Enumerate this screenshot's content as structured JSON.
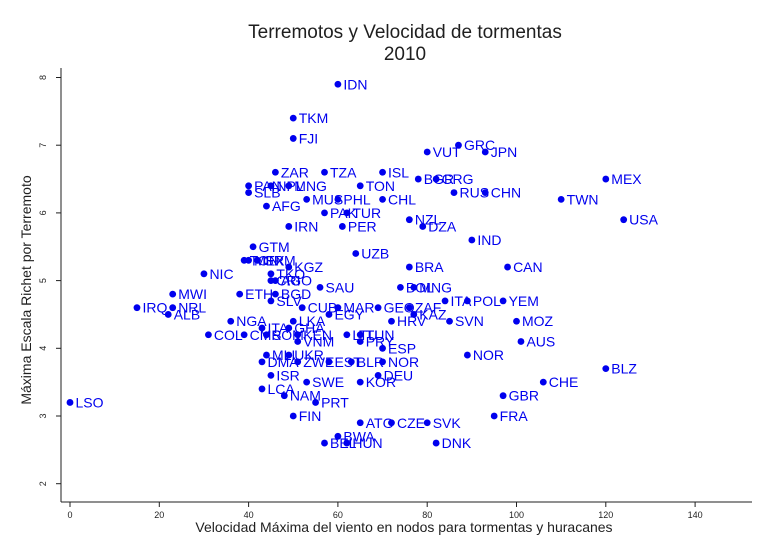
{
  "chart_data": {
    "type": "scatter",
    "title": "Terremotos y Velocidad de tormentas",
    "subtitle": "2010",
    "xlabel": "Velocidad Máxima del viento en nodos para tormentas y huracanes",
    "ylabel": "Máxima Escala Richet por Terremoto",
    "xlim": [
      0,
      152
    ],
    "ylim": [
      1.9,
      8.3
    ],
    "xticks": [
      "0",
      "20",
      "40",
      "60",
      "80",
      "100",
      "120",
      "140"
    ],
    "xtick_values": [
      0,
      20,
      40,
      60,
      80,
      100,
      120,
      140
    ],
    "yticks": [
      "2",
      "3",
      "4",
      "5",
      "6",
      "7",
      "8"
    ],
    "ytick_values": [
      2,
      3,
      4,
      5,
      6,
      7,
      8
    ],
    "grid": false,
    "marker_color": "#0000ee",
    "points": [
      {
        "label": "IDN",
        "x": 60,
        "y": 7.9
      },
      {
        "label": "TKM",
        "x": 50,
        "y": 7.4
      },
      {
        "label": "FJI",
        "x": 50,
        "y": 7.1
      },
      {
        "label": "GRC",
        "x": 87,
        "y": 7.0
      },
      {
        "label": "VUT",
        "x": 80,
        "y": 6.9
      },
      {
        "label": "JPN",
        "x": 93,
        "y": 6.9
      },
      {
        "label": "ZAR",
        "x": 46,
        "y": 6.6
      },
      {
        "label": "TZA",
        "x": 57,
        "y": 6.6
      },
      {
        "label": "ISL",
        "x": 70,
        "y": 6.6
      },
      {
        "label": "MEX",
        "x": 120,
        "y": 6.5
      },
      {
        "label": "PAN",
        "x": 40,
        "y": 6.4
      },
      {
        "label": "NPL",
        "x": 45,
        "y": 6.4
      },
      {
        "label": "MNG",
        "x": 49,
        "y": 6.4
      },
      {
        "label": "TON",
        "x": 65,
        "y": 6.4
      },
      {
        "label": "BGR",
        "x": 78,
        "y": 6.5
      },
      {
        "label": "GRG",
        "x": 82,
        "y": 6.5
      },
      {
        "label": "RUS",
        "x": 86,
        "y": 6.3
      },
      {
        "label": "CHN",
        "x": 93,
        "y": 6.3
      },
      {
        "label": "SLB",
        "x": 40,
        "y": 6.3
      },
      {
        "label": "MUS",
        "x": 53,
        "y": 6.2
      },
      {
        "label": "PHL",
        "x": 60,
        "y": 6.2
      },
      {
        "label": "CHL",
        "x": 70,
        "y": 6.2
      },
      {
        "label": "TWN",
        "x": 110,
        "y": 6.2
      },
      {
        "label": "AFG",
        "x": 44,
        "y": 6.1
      },
      {
        "label": "PAK",
        "x": 57,
        "y": 6.0
      },
      {
        "label": "TUR",
        "x": 62,
        "y": 6.0
      },
      {
        "label": "NZL",
        "x": 76,
        "y": 5.9
      },
      {
        "label": "USA",
        "x": 124,
        "y": 5.9
      },
      {
        "label": "IRN",
        "x": 49,
        "y": 5.8
      },
      {
        "label": "PER",
        "x": 61,
        "y": 5.8
      },
      {
        "label": "DZA",
        "x": 79,
        "y": 5.8
      },
      {
        "label": "IND",
        "x": 90,
        "y": 5.6
      },
      {
        "label": "GTM",
        "x": 41,
        "y": 5.5
      },
      {
        "label": "UZB",
        "x": 64,
        "y": 5.4
      },
      {
        "label": "TON",
        "x": 39,
        "y": 5.3
      },
      {
        "label": "MEX",
        "x": 40,
        "y": 5.3
      },
      {
        "label": "GRM",
        "x": 42,
        "y": 5.3
      },
      {
        "label": "BRA",
        "x": 76,
        "y": 5.2
      },
      {
        "label": "CAN",
        "x": 98,
        "y": 5.2
      },
      {
        "label": "KGZ",
        "x": 49,
        "y": 5.2
      },
      {
        "label": "NIC",
        "x": 30,
        "y": 5.1
      },
      {
        "label": "TKO",
        "x": 45,
        "y": 5.1
      },
      {
        "label": "AGO",
        "x": 46,
        "y": 5.0
      },
      {
        "label": "CRI",
        "x": 45,
        "y": 5.0
      },
      {
        "label": "SAU",
        "x": 56,
        "y": 4.9
      },
      {
        "label": "BOL",
        "x": 74,
        "y": 4.9
      },
      {
        "label": "MNG",
        "x": 77,
        "y": 4.9
      },
      {
        "label": "MWI",
        "x": 23,
        "y": 4.8
      },
      {
        "label": "ETH",
        "x": 38,
        "y": 4.8
      },
      {
        "label": "BGD",
        "x": 46,
        "y": 4.8
      },
      {
        "label": "ITA",
        "x": 84,
        "y": 4.7
      },
      {
        "label": "POL",
        "x": 89,
        "y": 4.7
      },
      {
        "label": "YEM",
        "x": 97,
        "y": 4.7
      },
      {
        "label": "SLV",
        "x": 45,
        "y": 4.7
      },
      {
        "label": "IRQ",
        "x": 15,
        "y": 4.6
      },
      {
        "label": "NRL",
        "x": 23,
        "y": 4.6
      },
      {
        "label": "CUB",
        "x": 52,
        "y": 4.6
      },
      {
        "label": "MAR",
        "x": 60,
        "y": 4.6
      },
      {
        "label": "GEO",
        "x": 69,
        "y": 4.6
      },
      {
        "label": "ZAF",
        "x": 76,
        "y": 4.6
      },
      {
        "label": "ALB",
        "x": 22,
        "y": 4.5
      },
      {
        "label": "EGY",
        "x": 58,
        "y": 4.5
      },
      {
        "label": "KAZ",
        "x": 77,
        "y": 4.5
      },
      {
        "label": "NGA",
        "x": 36,
        "y": 4.4
      },
      {
        "label": "LKA",
        "x": 50,
        "y": 4.4
      },
      {
        "label": "HRV",
        "x": 72,
        "y": 4.4
      },
      {
        "label": "SVN",
        "x": 85,
        "y": 4.4
      },
      {
        "label": "MOZ",
        "x": 100,
        "y": 4.4
      },
      {
        "label": "ITA",
        "x": 43,
        "y": 4.3
      },
      {
        "label": "GHA",
        "x": 49,
        "y": 4.3
      },
      {
        "label": "COL",
        "x": 31,
        "y": 4.2
      },
      {
        "label": "CMR",
        "x": 39,
        "y": 4.2
      },
      {
        "label": "SOM",
        "x": 44,
        "y": 4.2
      },
      {
        "label": "KEN",
        "x": 51,
        "y": 4.2
      },
      {
        "label": "LTU",
        "x": 62,
        "y": 4.2
      },
      {
        "label": "TUN",
        "x": 65,
        "y": 4.2
      },
      {
        "label": "AUS",
        "x": 101,
        "y": 4.1
      },
      {
        "label": "VNM",
        "x": 51,
        "y": 4.1
      },
      {
        "label": "PRY",
        "x": 65,
        "y": 4.1
      },
      {
        "label": "ESP",
        "x": 70,
        "y": 4.0
      },
      {
        "label": "NOR",
        "x": 89,
        "y": 3.9
      },
      {
        "label": "MLI",
        "x": 44,
        "y": 3.9
      },
      {
        "label": "UKR",
        "x": 49,
        "y": 3.9
      },
      {
        "label": "DMA",
        "x": 43,
        "y": 3.8
      },
      {
        "label": "ZWE",
        "x": 51,
        "y": 3.8
      },
      {
        "label": "EST",
        "x": 58,
        "y": 3.8
      },
      {
        "label": "BLR",
        "x": 63,
        "y": 3.8
      },
      {
        "label": "NOR",
        "x": 70,
        "y": 3.8
      },
      {
        "label": "BLZ",
        "x": 120,
        "y": 3.7
      },
      {
        "label": "ISR",
        "x": 45,
        "y": 3.6
      },
      {
        "label": "DEU",
        "x": 69,
        "y": 3.6
      },
      {
        "label": "SWE",
        "x": 53,
        "y": 3.5
      },
      {
        "label": "KOR",
        "x": 65,
        "y": 3.5
      },
      {
        "label": "CHE",
        "x": 106,
        "y": 3.5
      },
      {
        "label": "LCA",
        "x": 43,
        "y": 3.4
      },
      {
        "label": "NAM",
        "x": 48,
        "y": 3.3
      },
      {
        "label": "GBR",
        "x": 97,
        "y": 3.3
      },
      {
        "label": "LSO",
        "x": 0,
        "y": 3.2
      },
      {
        "label": "PRT",
        "x": 55,
        "y": 3.2
      },
      {
        "label": "FIN",
        "x": 50,
        "y": 3.0
      },
      {
        "label": "FRA",
        "x": 95,
        "y": 3.0
      },
      {
        "label": "ATG",
        "x": 65,
        "y": 2.9
      },
      {
        "label": "CZE",
        "x": 72,
        "y": 2.9
      },
      {
        "label": "SVK",
        "x": 80,
        "y": 2.9
      },
      {
        "label": "BWA",
        "x": 60,
        "y": 2.7
      },
      {
        "label": "BEL",
        "x": 57,
        "y": 2.6
      },
      {
        "label": "HUN",
        "x": 62,
        "y": 2.6
      },
      {
        "label": "DNK",
        "x": 82,
        "y": 2.6
      }
    ]
  }
}
